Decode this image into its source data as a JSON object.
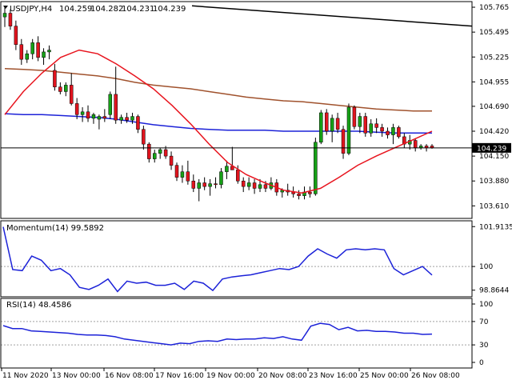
{
  "chart_data": [
    {
      "type": "candlestick",
      "title": "USDJPY,H4",
      "ohlc_readout": [
        "104.259",
        "104.282",
        "104.231",
        "104.239"
      ],
      "current_price": 104.239,
      "current_price_label": "104.239",
      "ylim": [
        103.5,
        105.8
      ],
      "y_ticks": [
        "105.765",
        "105.495",
        "105.225",
        "104.955",
        "104.690",
        "104.420",
        "104.150",
        "103.880",
        "103.610"
      ],
      "x_labels": [
        "11 Nov 2020",
        "13 Nov 00:00",
        "16 Nov 08:00",
        "17 Nov 16:00",
        "19 Nov 00:00",
        "20 Nov 08:00",
        "23 Nov 16:00",
        "25 Nov 00:00",
        "26 Nov 08:00"
      ],
      "colors": {
        "bull": "#16a016",
        "bear": "#e0141e",
        "ma_fast": "#e8141e",
        "ma_mid": "#1c22d8",
        "ma_slow": "#a0522d",
        "trendline": "#000000",
        "axis": "#000000"
      },
      "candles": [
        [
          105.66,
          105.78,
          105.55,
          105.7
        ],
        [
          105.7,
          105.74,
          105.52,
          105.56
        ],
        [
          105.56,
          105.62,
          105.3,
          105.36
        ],
        [
          105.36,
          105.42,
          105.14,
          105.2
        ],
        [
          105.2,
          105.3,
          105.16,
          105.26
        ],
        [
          105.26,
          105.42,
          105.2,
          105.38
        ],
        [
          105.38,
          105.45,
          105.18,
          105.22
        ],
        [
          105.22,
          105.32,
          105.14,
          105.28
        ],
        [
          105.28,
          105.35,
          105.2,
          105.3
        ],
        [
          105.08,
          105.15,
          104.86,
          104.9
        ],
        [
          104.9,
          104.95,
          104.82,
          104.85
        ],
        [
          104.85,
          104.95,
          104.8,
          104.92
        ],
        [
          104.92,
          105.05,
          104.7,
          104.72
        ],
        [
          104.72,
          104.78,
          104.55,
          104.6
        ],
        [
          104.6,
          104.68,
          104.52,
          104.63
        ],
        [
          104.63,
          104.7,
          104.52,
          104.56
        ],
        [
          104.56,
          104.62,
          104.5,
          104.6
        ],
        [
          104.55,
          104.6,
          104.44,
          104.58
        ],
        [
          104.58,
          104.66,
          104.52,
          104.56
        ],
        [
          104.6,
          104.85,
          104.55,
          104.82
        ],
        [
          104.82,
          105.12,
          104.5,
          104.54
        ],
        [
          104.54,
          104.6,
          104.5,
          104.57
        ],
        [
          104.57,
          104.62,
          104.51,
          104.54
        ],
        [
          104.54,
          104.62,
          104.5,
          104.58
        ],
        [
          104.58,
          104.6,
          104.4,
          104.44
        ],
        [
          104.44,
          104.48,
          104.22,
          104.28
        ],
        [
          104.28,
          104.3,
          104.08,
          104.12
        ],
        [
          104.12,
          104.22,
          104.08,
          104.18
        ],
        [
          104.18,
          104.24,
          104.12,
          104.22
        ],
        [
          104.22,
          104.26,
          104.12,
          104.15
        ],
        [
          104.15,
          104.2,
          104.0,
          104.05
        ],
        [
          104.05,
          104.08,
          103.88,
          103.92
        ],
        [
          103.92,
          104.05,
          103.86,
          103.98
        ],
        [
          103.98,
          104.1,
          103.84,
          103.88
        ],
        [
          103.88,
          103.95,
          103.76,
          103.8
        ],
        [
          103.8,
          103.9,
          103.66,
          103.86
        ],
        [
          103.86,
          103.92,
          103.78,
          103.82
        ],
        [
          103.82,
          103.9,
          103.72,
          103.85
        ],
        [
          103.85,
          103.92,
          103.8,
          103.84
        ],
        [
          103.84,
          104.02,
          103.8,
          103.98
        ],
        [
          103.98,
          104.1,
          103.9,
          104.04
        ],
        [
          104.04,
          104.25,
          104.0,
          104.0
        ],
        [
          104.0,
          104.05,
          103.85,
          103.88
        ],
        [
          103.88,
          103.92,
          103.76,
          103.82
        ],
        [
          103.82,
          103.92,
          103.78,
          103.86
        ],
        [
          103.86,
          103.9,
          103.74,
          103.8
        ],
        [
          103.8,
          103.9,
          103.76,
          103.84
        ],
        [
          103.84,
          103.88,
          103.76,
          103.8
        ],
        [
          103.8,
          103.92,
          103.78,
          103.86
        ],
        [
          103.86,
          103.9,
          103.72,
          103.76
        ],
        [
          103.76,
          103.8,
          103.7,
          103.78
        ],
        [
          103.78,
          103.85,
          103.72,
          103.76
        ],
        [
          103.76,
          103.82,
          103.7,
          103.74
        ],
        [
          103.74,
          103.78,
          103.68,
          103.72
        ],
        [
          103.72,
          103.82,
          103.68,
          103.76
        ],
        [
          103.76,
          103.82,
          103.7,
          103.74
        ],
        [
          103.74,
          104.35,
          103.72,
          104.3
        ],
        [
          104.3,
          104.65,
          104.28,
          104.62
        ],
        [
          104.62,
          104.66,
          104.38,
          104.42
        ],
        [
          104.42,
          104.6,
          104.3,
          104.56
        ],
        [
          104.56,
          104.62,
          104.4,
          104.44
        ],
        [
          104.44,
          104.48,
          104.12,
          104.18
        ],
        [
          104.18,
          104.72,
          104.16,
          104.68
        ],
        [
          104.68,
          104.7,
          104.44,
          104.47
        ],
        [
          104.47,
          104.62,
          104.4,
          104.58
        ],
        [
          104.58,
          104.62,
          104.36,
          104.4
        ],
        [
          104.4,
          104.55,
          104.36,
          104.5
        ],
        [
          104.5,
          104.56,
          104.4,
          104.46
        ],
        [
          104.46,
          104.5,
          104.36,
          104.42
        ],
        [
          104.42,
          104.46,
          104.34,
          104.38
        ],
        [
          104.38,
          104.5,
          104.28,
          104.46
        ],
        [
          104.46,
          104.48,
          104.34,
          104.36
        ],
        [
          104.36,
          104.4,
          104.24,
          104.28
        ],
        [
          104.28,
          104.38,
          104.22,
          104.32
        ],
        [
          104.32,
          104.34,
          104.2,
          104.24
        ],
        [
          104.24,
          104.28,
          104.22,
          104.26
        ],
        [
          104.26,
          104.28,
          104.2,
          104.24
        ],
        [
          104.26,
          104.28,
          104.23,
          104.24
        ]
      ],
      "ma_fast": [
        104.6,
        104.85,
        105.05,
        105.22,
        105.3,
        105.26,
        105.15,
        105.02,
        104.88,
        104.7,
        104.5,
        104.28,
        104.08,
        103.95,
        103.86,
        103.78,
        103.75,
        103.8,
        103.92,
        104.05,
        104.15,
        104.24,
        104.33,
        104.42
      ],
      "ma_mid": [
        104.61,
        104.6,
        104.6,
        104.59,
        104.58,
        104.57,
        104.55,
        104.52,
        104.49,
        104.47,
        104.45,
        104.44,
        104.43,
        104.43,
        104.43,
        104.42,
        104.42,
        104.42,
        104.42,
        104.42,
        104.41,
        104.4,
        104.4,
        104.4
      ],
      "ma_slow": [
        105.1,
        105.09,
        105.08,
        105.06,
        105.04,
        105.02,
        104.99,
        104.95,
        104.92,
        104.9,
        104.88,
        104.85,
        104.82,
        104.79,
        104.77,
        104.75,
        104.74,
        104.72,
        104.7,
        104.68,
        104.66,
        104.65,
        104.64,
        104.64
      ]
    },
    {
      "type": "line",
      "title": "Momentum(14) 99.5892",
      "ylim": [
        98.7,
        102.0
      ],
      "y_ticks": [
        "101.9135",
        "100",
        "98.8644"
      ],
      "reference_level": 100,
      "values": [
        101.9,
        99.85,
        99.8,
        100.5,
        100.3,
        99.8,
        99.9,
        99.6,
        99.0,
        98.9,
        99.1,
        99.4,
        98.8,
        99.3,
        99.2,
        99.25,
        99.1,
        99.1,
        99.2,
        98.9,
        99.3,
        99.2,
        98.85,
        99.4,
        99.5,
        99.55,
        99.6,
        99.7,
        99.8,
        99.9,
        99.85,
        100.0,
        100.5,
        100.85,
        100.6,
        100.4,
        100.8,
        100.85,
        100.8,
        100.85,
        100.8,
        99.9,
        99.6,
        99.8,
        100.0,
        99.5892
      ],
      "color": "#1c22d8"
    },
    {
      "type": "line",
      "title": "RSI(14) 48.4586",
      "ylim": [
        0,
        100
      ],
      "y_ticks": [
        "100",
        "70",
        "30",
        "0"
      ],
      "levels": [
        70,
        30
      ],
      "values": [
        63,
        58,
        58,
        54,
        53,
        52,
        51,
        50,
        48,
        47,
        47,
        46,
        44,
        40,
        38,
        36,
        34,
        32,
        30,
        33,
        32,
        36,
        37,
        36,
        40,
        39,
        40,
        40,
        42,
        41,
        44,
        40,
        38,
        62,
        67,
        65,
        56,
        60,
        54,
        55,
        53,
        53,
        52,
        50,
        50,
        48,
        48.4586
      ],
      "color": "#1c22d8"
    }
  ]
}
